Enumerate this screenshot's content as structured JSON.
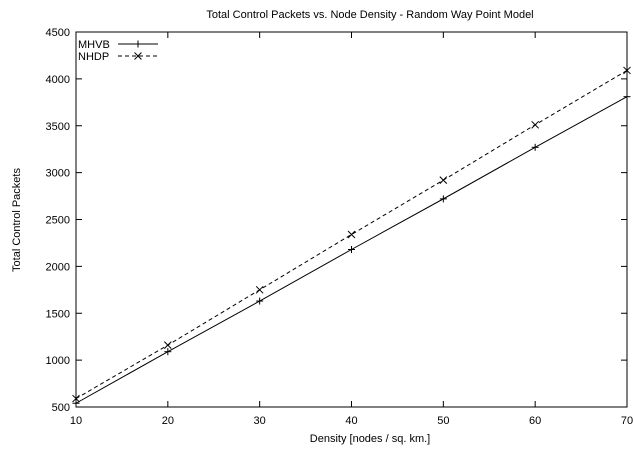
{
  "chart_data": {
    "type": "line",
    "title": "Total Control Packets vs. Node Density - Random Way Point Model",
    "xlabel": "Density [nodes / sq. km.]",
    "ylabel": "Total Control Packets",
    "xlim": [
      10,
      70
    ],
    "ylim": [
      500,
      4500
    ],
    "xticks": [
      10,
      20,
      30,
      40,
      50,
      60,
      70
    ],
    "yticks": [
      500,
      1000,
      1500,
      2000,
      2500,
      3000,
      3500,
      4000,
      4500
    ],
    "grid": false,
    "legend_position": "top-left",
    "x": [
      10,
      20,
      30,
      40,
      50,
      60,
      70
    ],
    "series": [
      {
        "name": "MHVB",
        "values": [
          540,
          1090,
          1630,
          2180,
          2720,
          3270,
          3810
        ],
        "line_style": "solid",
        "marker": "plus"
      },
      {
        "name": "NHDP",
        "values": [
          590,
          1160,
          1750,
          2340,
          2920,
          3510,
          4090
        ],
        "line_style": "dashed",
        "marker": "cross"
      }
    ]
  }
}
